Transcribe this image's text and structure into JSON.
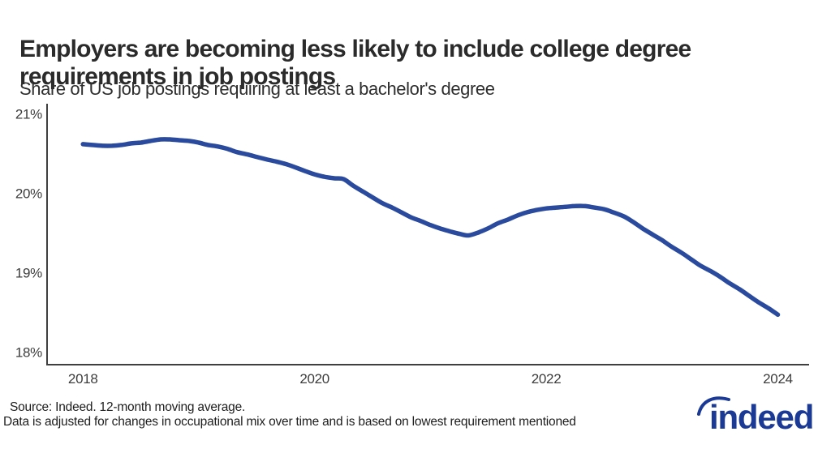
{
  "header": {
    "title_line1": "Employers are becoming less likely to include college degree",
    "title_line2": "requirements in job postings",
    "subtitle": "Share of US job postings requiring at least a bachelor's degree"
  },
  "chart_data": {
    "type": "line",
    "title": "Employers are becoming less likely to include college degree requirements in job postings",
    "subtitle": "Share of US job postings requiring at least a bachelor's degree",
    "xlabel": "",
    "ylabel": "",
    "grid": false,
    "legend": "none",
    "line_color": "#2a4a9e",
    "axis_color": "#3f3f3f",
    "tick_color": "#3c3c3c",
    "xlim": [
      2017.69,
      2024.27
    ],
    "ylim": [
      17.84,
      21.13
    ],
    "x_ticks": [
      {
        "label": "2018",
        "value": 2018
      },
      {
        "label": "2020",
        "value": 2020
      },
      {
        "label": "2022",
        "value": 2022
      },
      {
        "label": "2024",
        "value": 2024
      }
    ],
    "y_ticks": [
      {
        "label": "18%",
        "value": 18
      },
      {
        "label": "19%",
        "value": 19
      },
      {
        "label": "20%",
        "value": 20
      },
      {
        "label": "21%",
        "value": 21
      }
    ],
    "series": [
      {
        "name": "Share of US job postings requiring at least a bachelor's degree (12-month moving average, %)",
        "x": [
          2018,
          2018.08,
          2018.17,
          2018.25,
          2018.33,
          2018.42,
          2018.5,
          2018.58,
          2018.67,
          2018.75,
          2018.83,
          2018.92,
          2019,
          2019.08,
          2019.17,
          2019.25,
          2019.33,
          2019.42,
          2019.5,
          2019.58,
          2019.67,
          2019.75,
          2019.83,
          2019.92,
          2020,
          2020.08,
          2020.17,
          2020.25,
          2020.33,
          2020.42,
          2020.5,
          2020.58,
          2020.67,
          2020.75,
          2020.83,
          2020.92,
          2021,
          2021.08,
          2021.17,
          2021.25,
          2021.33,
          2021.42,
          2021.5,
          2021.58,
          2021.67,
          2021.75,
          2021.83,
          2021.92,
          2022,
          2022.08,
          2022.17,
          2022.25,
          2022.33,
          2022.42,
          2022.5,
          2022.58,
          2022.67,
          2022.75,
          2022.83,
          2022.92,
          2023,
          2023.08,
          2023.17,
          2023.25,
          2023.33,
          2023.42,
          2023.5,
          2023.58,
          2023.67,
          2023.75,
          2023.83,
          2023.92,
          2024
        ],
        "values": [
          20.62,
          20.61,
          20.6,
          20.6,
          20.61,
          20.63,
          20.64,
          20.66,
          20.68,
          20.68,
          20.67,
          20.66,
          20.64,
          20.61,
          20.59,
          20.56,
          20.52,
          20.49,
          20.46,
          20.43,
          20.4,
          20.37,
          20.33,
          20.28,
          20.24,
          20.21,
          20.19,
          20.18,
          20.1,
          20.02,
          19.95,
          19.88,
          19.82,
          19.76,
          19.7,
          19.65,
          19.6,
          19.56,
          19.52,
          19.49,
          19.47,
          19.51,
          19.56,
          19.62,
          19.67,
          19.72,
          19.76,
          19.79,
          19.81,
          19.82,
          19.83,
          19.84,
          19.84,
          19.82,
          19.8,
          19.76,
          19.71,
          19.64,
          19.56,
          19.48,
          19.41,
          19.33,
          19.25,
          19.17,
          19.09,
          19.02,
          18.95,
          18.87,
          18.79,
          18.71,
          18.63,
          18.55,
          18.47
        ]
      }
    ]
  },
  "footer": {
    "source_line1": "Source: Indeed. 12-month moving average.",
    "source_line2": "Data is adjusted for changes in occupational mix over time and is based on lowest requirement mentioned",
    "logo_text": "indeed",
    "logo_color": "#1b3a95"
  }
}
